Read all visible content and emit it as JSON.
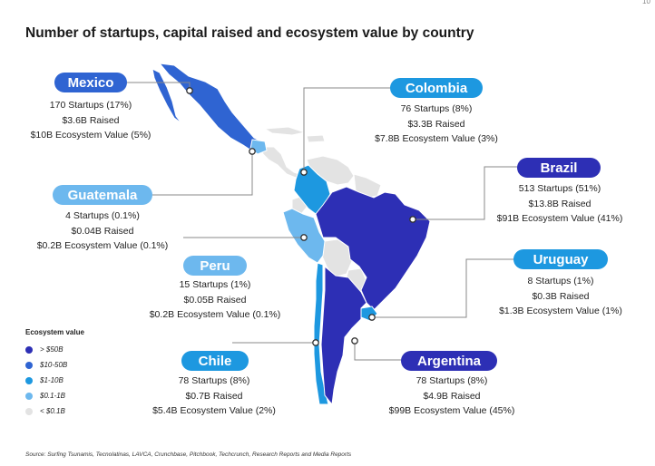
{
  "title": "Number of startups, capital raised and ecosystem value by country",
  "corner_mark": "10",
  "colors": {
    "gt50": "#2d2fb5",
    "b10_50": "#2f64d2",
    "b1_10": "#1d98e0",
    "b01_1": "#6db8ee",
    "lt01": "#e3e3e3",
    "leader": "#888888"
  },
  "countries": {
    "mexico": {
      "name": "Mexico",
      "startups": "170 Startups (17%)",
      "raised": "$3.6B Raised",
      "value": "$10B Ecosystem Value (5%)",
      "tier": "$10-50B"
    },
    "colombia": {
      "name": "Colombia",
      "startups": "76 Startups (8%)",
      "raised": "$3.3B Raised",
      "value": "$7.8B Ecosystem Value (3%)",
      "tier": "$1-10B"
    },
    "brazil": {
      "name": "Brazil",
      "startups": "513 Startups (51%)",
      "raised": "$13.8B Raised",
      "value": "$91B Ecosystem Value (41%)",
      "tier": "> $50B"
    },
    "guatemala": {
      "name": "Guatemala",
      "startups": "4 Startups (0.1%)",
      "raised": "$0.04B Raised",
      "value": "$0.2B Ecosystem Value (0.1%)",
      "tier": "$0.1-1B"
    },
    "peru": {
      "name": "Peru",
      "startups": "15 Startups (1%)",
      "raised": "$0.05B Raised",
      "value": "$0.2B Ecosystem Value (0.1%)",
      "tier": "$0.1-1B"
    },
    "uruguay": {
      "name": "Uruguay",
      "startups": "8 Startups (1%)",
      "raised": "$0.3B Raised",
      "value": "$1.3B Ecosystem Value (1%)",
      "tier": "$1-10B"
    },
    "chile": {
      "name": "Chile",
      "startups": "78 Startups (8%)",
      "raised": "$0.7B Raised",
      "value": "$5.4B Ecosystem Value (2%)",
      "tier": "$1-10B"
    },
    "argentina": {
      "name": "Argentina",
      "startups": "78 Startups (8%)",
      "raised": "$4.9B Raised",
      "value": "$99B Ecosystem Value (45%)",
      "tier": "> $50B"
    }
  },
  "legend": {
    "title": "Ecosystem value",
    "items": [
      "> $50B",
      "$10-50B",
      "$1-10B",
      "$0.1-1B",
      "< $0.1B"
    ]
  },
  "source": "Source: Surfing Tsunamis, Tecnolatinas, LAVCA, Crunchbase, Pitchbook, Techcrunch, Research Reports and Media Reports"
}
